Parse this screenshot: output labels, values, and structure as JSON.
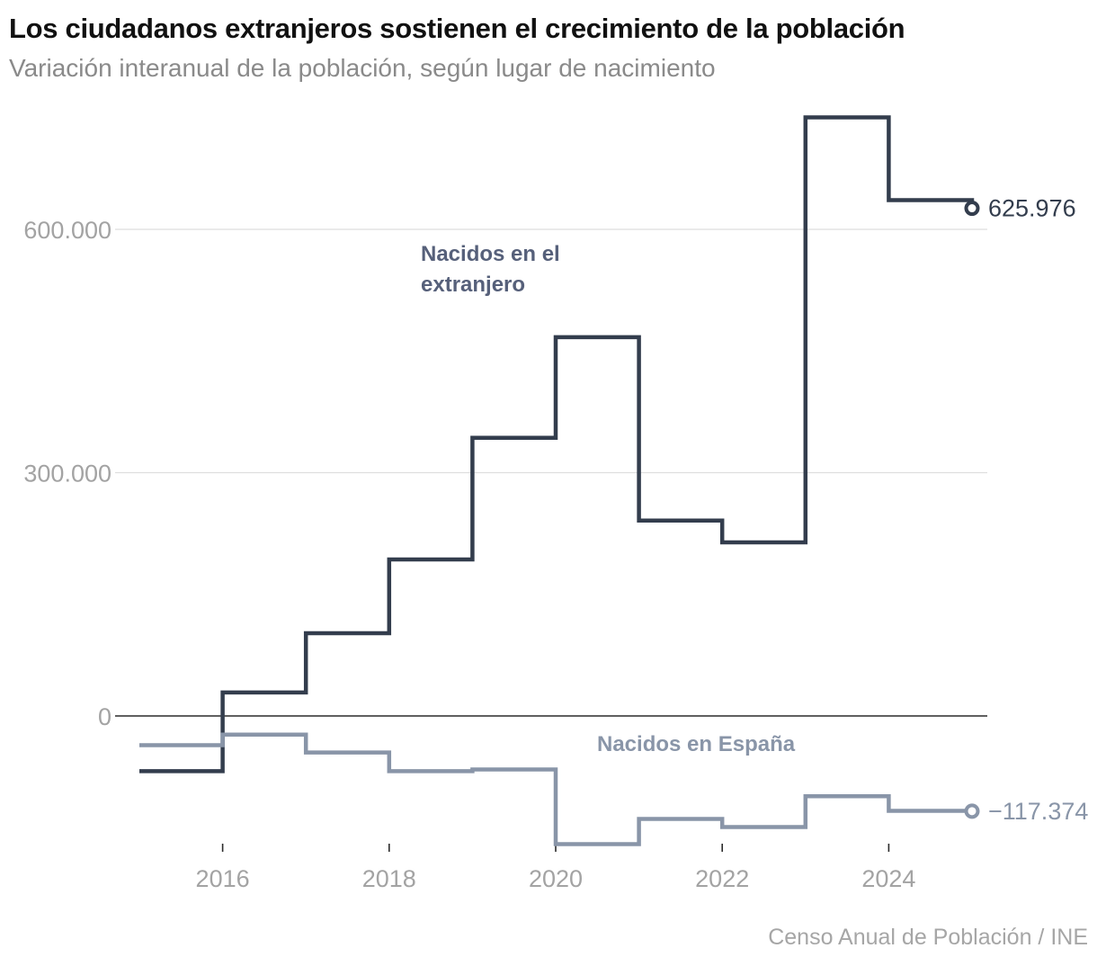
{
  "chart_data": {
    "type": "line",
    "step": "post",
    "title": "Los ciudadanos extranjeros sostienen el crecimiento de la población",
    "subtitle": "Variación interanual de la población, según lugar de nacimiento",
    "source": "Censo Anual de Población / INE",
    "xlabel": "",
    "ylabel": "",
    "xlim": [
      2015,
      2025.3
    ],
    "ylim": [
      -160000,
      740000
    ],
    "x_ticks": [
      2016,
      2018,
      2020,
      2022,
      2024
    ],
    "x_tick_labels": [
      "2016",
      "2018",
      "2020",
      "2022",
      "2024"
    ],
    "y_ticks": [
      0,
      300000,
      600000
    ],
    "y_tick_labels": [
      "0",
      "300.000",
      "600.000"
    ],
    "grid": true,
    "legend": "inline labels",
    "series": [
      {
        "name": "Nacidos en el extranjero",
        "label_lines": [
          "Nacidos en el",
          "extranjero"
        ],
        "color": "#333d4d",
        "x": [
          2015,
          2016,
          2017,
          2018,
          2019,
          2020,
          2021,
          2022,
          2023,
          2024,
          2025
        ],
        "values": [
          -68000,
          29000,
          102000,
          193000,
          343000,
          467000,
          241000,
          214000,
          738000,
          636000,
          625976
        ],
        "end_label": "625.976"
      },
      {
        "name": "Nacidos en España",
        "label_lines": [
          "Nacidos en España"
        ],
        "color": "#8995a8",
        "x": [
          2015,
          2016,
          2017,
          2018,
          2019,
          2020,
          2021,
          2022,
          2023,
          2024,
          2025
        ],
        "values": [
          -36000,
          -23000,
          -45000,
          -68000,
          -66000,
          -158000,
          -127000,
          -137000,
          -99000,
          -117000,
          -117374
        ],
        "end_label": "−117.374"
      }
    ]
  }
}
